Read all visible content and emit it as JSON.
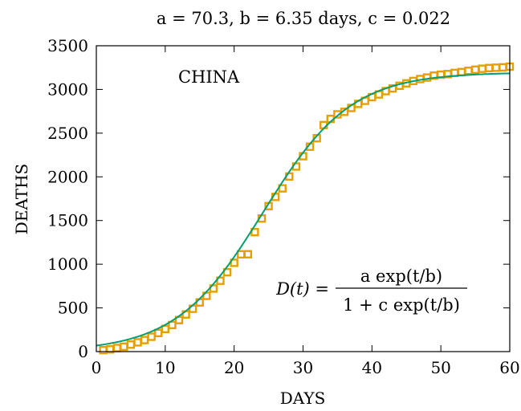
{
  "chart_data": {
    "type": "scatter",
    "title": "a = 70.3, b = 6.35 days, c = 0.022",
    "xlabel": "DAYS",
    "ylabel": "DEATHS",
    "xlim": [
      0,
      60
    ],
    "ylim": [
      0,
      3500
    ],
    "x_ticks": [
      0,
      10,
      20,
      30,
      40,
      50,
      60
    ],
    "y_ticks": [
      0,
      500,
      1000,
      1500,
      2000,
      2500,
      3000,
      3500
    ],
    "grid": false,
    "annotations": {
      "country": "CHINA",
      "formula_lhs": "D(t) =",
      "formula_num": "a exp(t/b)",
      "formula_den": "1 + c exp(t/b)"
    },
    "fit_params": {
      "a": 70.3,
      "b": 6.35,
      "c": 0.022
    },
    "colors": {
      "data": "#e69f00",
      "fit": "#009e73",
      "axes": "#000000"
    },
    "series": [
      {
        "kind": "markers",
        "marker": "square",
        "x": [
          1,
          2,
          3,
          4,
          5,
          6,
          7,
          8,
          9,
          10,
          11,
          12,
          13,
          14,
          15,
          16,
          17,
          18,
          19,
          20,
          21,
          22,
          23,
          24,
          25,
          26,
          27,
          28,
          29,
          30,
          31,
          32,
          33,
          34,
          35,
          36,
          37,
          38,
          39,
          40,
          41,
          42,
          43,
          44,
          45,
          46,
          47,
          48,
          49,
          50,
          51,
          52,
          53,
          54,
          55,
          56,
          57,
          58,
          59,
          60
        ],
        "y": [
          17,
          25,
          41,
          56,
          80,
          106,
          132,
          170,
          213,
          259,
          304,
          361,
          425,
          490,
          563,
          638,
          722,
          811,
          908,
          1016,
          1113,
          1114,
          1367,
          1523,
          1665,
          1770,
          1868,
          2004,
          2118,
          2236,
          2345,
          2442,
          2592,
          2663,
          2715,
          2744,
          2788,
          2835,
          2870,
          2912,
          2943,
          2981,
          3012,
          3042,
          3070,
          3097,
          3119,
          3136,
          3158,
          3169,
          3176,
          3189,
          3199,
          3213,
          3226,
          3237,
          3245,
          3249,
          3253,
          3261
        ]
      },
      {
        "kind": "line",
        "function": "a*exp(t/b)/(1+c*exp(t/b))",
        "x_range": [
          0,
          60
        ]
      }
    ]
  }
}
